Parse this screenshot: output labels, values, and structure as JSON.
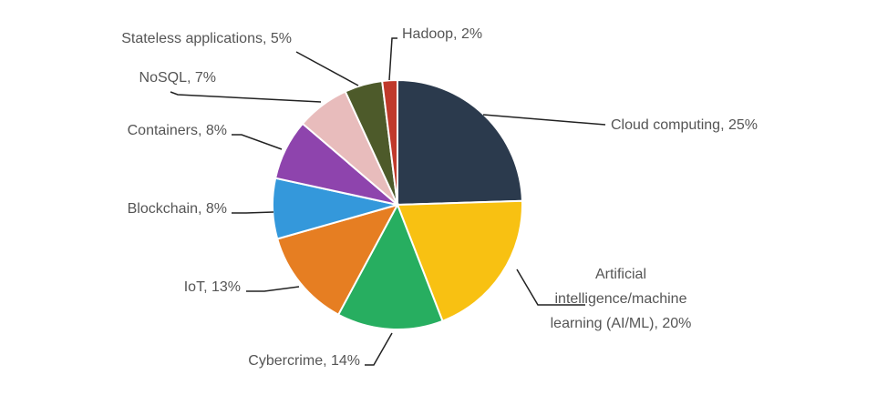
{
  "chart_data": {
    "type": "pie",
    "title": "",
    "start_angle_deg": 0,
    "direction": "clockwise",
    "slices": [
      {
        "label": "Cloud computing, 25%",
        "category": "Cloud computing",
        "value": 25,
        "color": "#2b3a4d"
      },
      {
        "label_lines": [
          "Artificial",
          "intelligence/machine",
          "learning (AI/ML), 20%"
        ],
        "category": "Artificial intelligence/machine learning (AI/ML)",
        "value": 20,
        "color": "#f8c112"
      },
      {
        "label": "Cybercrime, 14%",
        "category": "Cybercrime",
        "value": 14,
        "color": "#27ae60"
      },
      {
        "label": "IoT, 13%",
        "category": "IoT",
        "value": 13,
        "color": "#e67e22"
      },
      {
        "label": "Blockchain, 8%",
        "category": "Blockchain",
        "value": 8,
        "color": "#3498db"
      },
      {
        "label": "Containers, 8%",
        "category": "Containers",
        "value": 8,
        "color": "#8e44ad"
      },
      {
        "label": "NoSQL, 7%",
        "category": "NoSQL",
        "value": 7,
        "color": "#e8bcbc"
      },
      {
        "label": "Stateless applications, 5%",
        "category": "Stateless applications",
        "value": 5,
        "color": "#4d5a2a"
      },
      {
        "label": "Hadoop, 2%",
        "category": "Hadoop",
        "value": 2,
        "color": "#c0392b"
      }
    ]
  }
}
